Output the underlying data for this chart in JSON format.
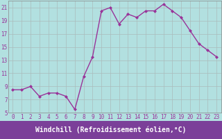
{
  "x": [
    0,
    1,
    2,
    3,
    4,
    5,
    6,
    7,
    8,
    9,
    10,
    11,
    12,
    13,
    14,
    15,
    16,
    17,
    18,
    19,
    20,
    21,
    22,
    23
  ],
  "y": [
    8.5,
    8.5,
    9.0,
    7.5,
    8.0,
    8.0,
    7.5,
    5.5,
    10.5,
    13.5,
    20.5,
    21.0,
    18.5,
    20.0,
    19.5,
    20.5,
    20.5,
    21.5,
    20.5,
    19.5,
    17.5,
    15.5,
    14.5,
    13.5
  ],
  "line_color": "#993399",
  "marker": "D",
  "marker_size": 2.0,
  "bg_color": "#b2e0e0",
  "grid_color": "#aabbbb",
  "xlabel": "Windchill (Refroidissement éolien,°C)",
  "xlabel_fontsize": 7,
  "xlim": [
    -0.5,
    23.5
  ],
  "ylim": [
    5,
    22
  ],
  "yticks": [
    5,
    7,
    9,
    11,
    13,
    15,
    17,
    19,
    21
  ],
  "xticks": [
    0,
    1,
    2,
    3,
    4,
    5,
    6,
    7,
    8,
    9,
    10,
    11,
    12,
    13,
    14,
    15,
    16,
    17,
    18,
    19,
    20,
    21,
    22,
    23
  ],
  "tick_fontsize": 5.5,
  "line_width": 1.0,
  "xlabel_bg": "#7b3f99",
  "xlabel_color": "white"
}
